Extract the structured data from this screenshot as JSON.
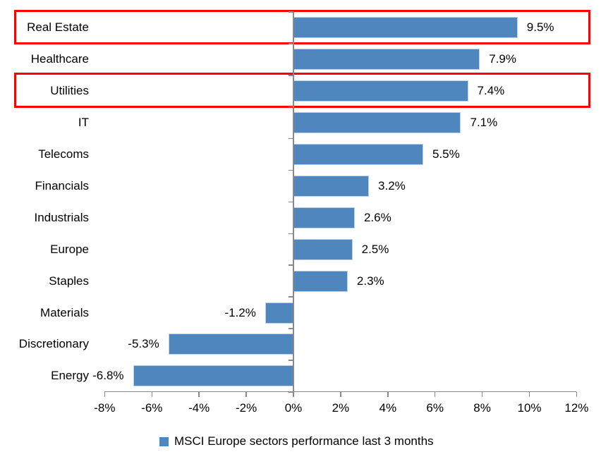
{
  "chart_data": {
    "type": "bar",
    "orientation": "horizontal",
    "title": "",
    "xlabel": "",
    "ylabel": "",
    "categories": [
      "Real Estate",
      "Healthcare",
      "Utilities",
      "IT",
      "Telecoms",
      "Financials",
      "Industrials",
      "Europe",
      "Staples",
      "Materials",
      "Discretionary",
      "Energy"
    ],
    "values": [
      9.5,
      7.9,
      7.4,
      7.1,
      5.5,
      3.2,
      2.6,
      2.5,
      2.3,
      -1.2,
      -5.3,
      -6.8
    ],
    "value_labels": [
      "9.5%",
      "7.9%",
      "7.4%",
      "7.1%",
      "5.5%",
      "3.2%",
      "2.6%",
      "2.5%",
      "2.3%",
      "-1.2%",
      "-5.3%",
      "-6.8%"
    ],
    "xlim": [
      -8,
      12
    ],
    "x_ticks": [
      {
        "value": -8,
        "label": "-8%"
      },
      {
        "value": -6,
        "label": "-6%"
      },
      {
        "value": -4,
        "label": "-4%"
      },
      {
        "value": -2,
        "label": "-2%"
      },
      {
        "value": 0,
        "label": "0%"
      },
      {
        "value": 2,
        "label": "2%"
      },
      {
        "value": 4,
        "label": "4%"
      },
      {
        "value": 6,
        "label": "6%"
      },
      {
        "value": 8,
        "label": "8%"
      },
      {
        "value": 10,
        "label": "10%"
      },
      {
        "value": 12,
        "label": "12%"
      }
    ],
    "grid": false,
    "legend": "MSCI Europe sectors performance last 3 months",
    "legend_position": "bottom",
    "highlighted_categories": [
      "Real Estate",
      "Utilities"
    ],
    "colors": {
      "bar": "#4F86BD",
      "bar_edge": "#BCD2E8",
      "highlight_box": "#FF0000",
      "axis": "#8A8A8A",
      "text": "#000000",
      "background": "#FFFFFF"
    }
  }
}
